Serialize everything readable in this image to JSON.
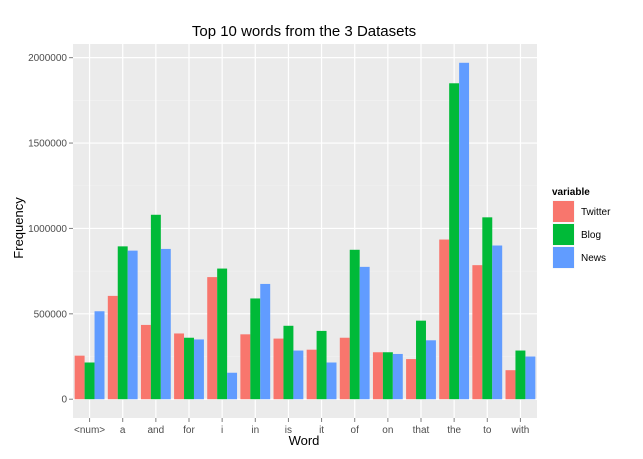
{
  "chart_data": {
    "type": "bar",
    "title": "Top 10 words from the 3 Datasets",
    "xlabel": "Word",
    "ylabel": "Frequency",
    "categories": [
      "<num>",
      "a",
      "and",
      "for",
      "i",
      "in",
      "is",
      "it",
      "of",
      "on",
      "that",
      "the",
      "to",
      "with"
    ],
    "series": [
      {
        "name": "Twitter",
        "color": "#F8766D",
        "values": [
          255000,
          605000,
          435000,
          385000,
          715000,
          380000,
          355000,
          290000,
          360000,
          275000,
          235000,
          935000,
          785000,
          170000
        ]
      },
      {
        "name": "Blog",
        "color": "#00BA38",
        "values": [
          215000,
          895000,
          1080000,
          360000,
          765000,
          590000,
          430000,
          400000,
          875000,
          275000,
          460000,
          1850000,
          1065000,
          285000
        ]
      },
      {
        "name": "News",
        "color": "#619CFF",
        "values": [
          515000,
          870000,
          880000,
          350000,
          155000,
          675000,
          285000,
          215000,
          775000,
          265000,
          345000,
          1970000,
          900000,
          250000
        ]
      }
    ],
    "yticks": [
      0,
      500000,
      1000000,
      1500000,
      2000000
    ],
    "ylim": [
      -110000,
      2080000
    ],
    "grid": true,
    "legend": {
      "title": "variable",
      "position": "right"
    },
    "panel_color": "#EBEBEB",
    "grid_color": "#FFFFFF"
  }
}
